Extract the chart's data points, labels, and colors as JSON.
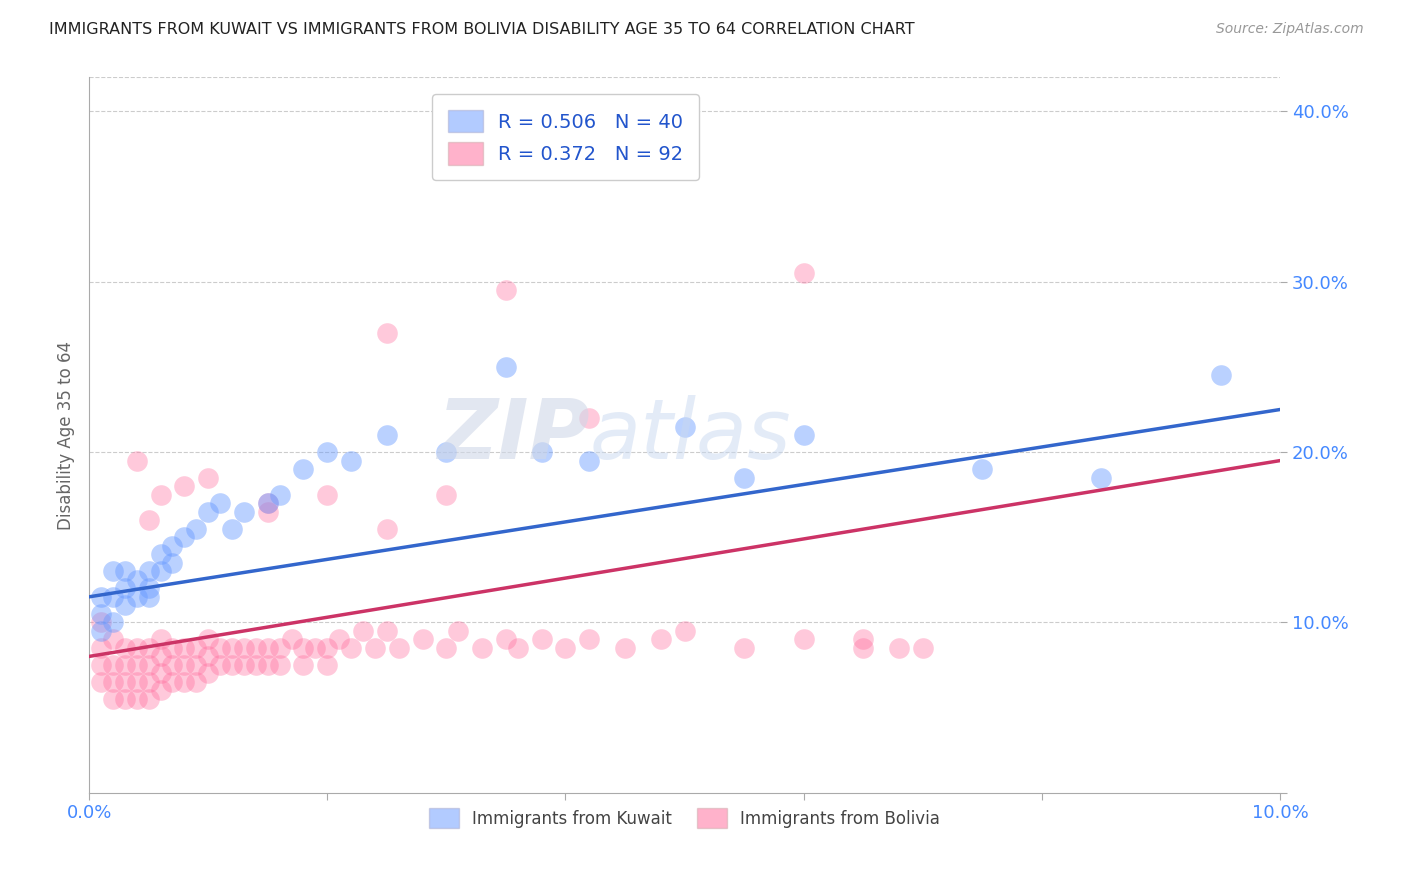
{
  "title": "IMMIGRANTS FROM KUWAIT VS IMMIGRANTS FROM BOLIVIA DISABILITY AGE 35 TO 64 CORRELATION CHART",
  "source": "Source: ZipAtlas.com",
  "ylabel": "Disability Age 35 to 64",
  "xlim": [
    0.0,
    0.1
  ],
  "ylim": [
    0.0,
    0.42
  ],
  "xticks": [
    0.0,
    0.02,
    0.04,
    0.06,
    0.08,
    0.1
  ],
  "xticklabels": [
    "0.0%",
    "",
    "",
    "",
    "",
    "10.0%"
  ],
  "yticks": [
    0.0,
    0.1,
    0.2,
    0.3,
    0.4
  ],
  "yticklabels": [
    "",
    "10.0%",
    "20.0%",
    "30.0%",
    "40.0%"
  ],
  "kuwait_color": "#6699ff",
  "bolivia_color": "#ff6699",
  "kuwait_line_color": "#3366cc",
  "bolivia_line_color": "#cc3366",
  "kuwait_R": 0.506,
  "kuwait_N": 40,
  "bolivia_R": 0.372,
  "bolivia_N": 92,
  "watermark": "ZIPatlas",
  "kuwait_x": [
    0.001,
    0.001,
    0.001,
    0.002,
    0.002,
    0.002,
    0.003,
    0.003,
    0.003,
    0.004,
    0.004,
    0.005,
    0.005,
    0.005,
    0.006,
    0.006,
    0.007,
    0.007,
    0.008,
    0.009,
    0.01,
    0.011,
    0.012,
    0.013,
    0.015,
    0.016,
    0.018,
    0.02,
    0.022,
    0.025,
    0.03,
    0.035,
    0.038,
    0.042,
    0.05,
    0.055,
    0.06,
    0.075,
    0.085,
    0.095
  ],
  "kuwait_y": [
    0.115,
    0.105,
    0.095,
    0.13,
    0.115,
    0.1,
    0.13,
    0.12,
    0.11,
    0.125,
    0.115,
    0.13,
    0.12,
    0.115,
    0.14,
    0.13,
    0.145,
    0.135,
    0.15,
    0.155,
    0.165,
    0.17,
    0.155,
    0.165,
    0.17,
    0.175,
    0.19,
    0.2,
    0.195,
    0.21,
    0.2,
    0.25,
    0.2,
    0.195,
    0.215,
    0.185,
    0.21,
    0.19,
    0.185,
    0.245
  ],
  "bolivia_x": [
    0.001,
    0.001,
    0.001,
    0.001,
    0.002,
    0.002,
    0.002,
    0.002,
    0.003,
    0.003,
    0.003,
    0.003,
    0.004,
    0.004,
    0.004,
    0.004,
    0.005,
    0.005,
    0.005,
    0.005,
    0.006,
    0.006,
    0.006,
    0.006,
    0.007,
    0.007,
    0.007,
    0.008,
    0.008,
    0.008,
    0.009,
    0.009,
    0.009,
    0.01,
    0.01,
    0.01,
    0.011,
    0.011,
    0.012,
    0.012,
    0.013,
    0.013,
    0.014,
    0.014,
    0.015,
    0.015,
    0.016,
    0.016,
    0.017,
    0.018,
    0.018,
    0.019,
    0.02,
    0.02,
    0.021,
    0.022,
    0.023,
    0.024,
    0.025,
    0.026,
    0.028,
    0.03,
    0.031,
    0.033,
    0.035,
    0.036,
    0.038,
    0.04,
    0.042,
    0.045,
    0.048,
    0.05,
    0.055,
    0.06,
    0.065,
    0.065,
    0.068,
    0.07,
    0.042,
    0.03,
    0.025,
    0.02,
    0.015,
    0.01,
    0.008,
    0.006,
    0.005,
    0.004,
    0.035,
    0.025,
    0.015,
    0.06
  ],
  "bolivia_y": [
    0.085,
    0.1,
    0.075,
    0.065,
    0.09,
    0.075,
    0.065,
    0.055,
    0.085,
    0.075,
    0.065,
    0.055,
    0.085,
    0.075,
    0.065,
    0.055,
    0.085,
    0.075,
    0.065,
    0.055,
    0.09,
    0.08,
    0.07,
    0.06,
    0.085,
    0.075,
    0.065,
    0.085,
    0.075,
    0.065,
    0.085,
    0.075,
    0.065,
    0.09,
    0.08,
    0.07,
    0.085,
    0.075,
    0.085,
    0.075,
    0.085,
    0.075,
    0.085,
    0.075,
    0.085,
    0.075,
    0.085,
    0.075,
    0.09,
    0.085,
    0.075,
    0.085,
    0.085,
    0.075,
    0.09,
    0.085,
    0.095,
    0.085,
    0.095,
    0.085,
    0.09,
    0.085,
    0.095,
    0.085,
    0.09,
    0.085,
    0.09,
    0.085,
    0.09,
    0.085,
    0.09,
    0.095,
    0.085,
    0.09,
    0.085,
    0.09,
    0.085,
    0.085,
    0.22,
    0.175,
    0.155,
    0.175,
    0.17,
    0.185,
    0.18,
    0.175,
    0.16,
    0.195,
    0.295,
    0.27,
    0.165,
    0.305
  ],
  "kuwait_line_x0": 0.0,
  "kuwait_line_y0": 0.115,
  "kuwait_line_x1": 0.1,
  "kuwait_line_y1": 0.225,
  "bolivia_line_x0": 0.0,
  "bolivia_line_y0": 0.08,
  "bolivia_line_x1": 0.1,
  "bolivia_line_y1": 0.195
}
